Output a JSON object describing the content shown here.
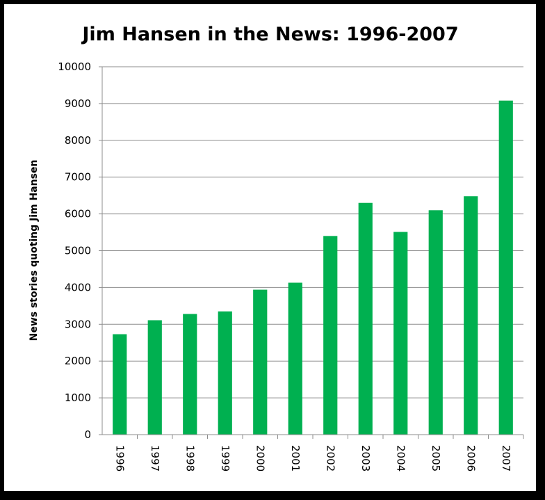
{
  "colors": {
    "bar": "#00b050",
    "grid": "#8c8c8c",
    "axis": "#8c8c8c",
    "frame": "#000000",
    "background": "#ffffff"
  },
  "chart_data": {
    "type": "bar",
    "title": "Jim Hansen in the News: 1996-2007",
    "xlabel": "",
    "ylabel": "News stories quoting Jim Hansen",
    "categories": [
      "1996",
      "1997",
      "1998",
      "1999",
      "2000",
      "2001",
      "2002",
      "2003",
      "2004",
      "2005",
      "2006",
      "2007"
    ],
    "values": [
      2730,
      3110,
      3280,
      3350,
      3940,
      4130,
      5400,
      6300,
      5510,
      6100,
      6480,
      9080
    ],
    "ylim": [
      0,
      10000
    ],
    "yticks": [
      "0",
      "1000",
      "2000",
      "3000",
      "4000",
      "5000",
      "6000",
      "7000",
      "8000",
      "9000",
      "10000"
    ],
    "grid": true,
    "legend": "none",
    "x_tick_rotation": "vertical"
  }
}
